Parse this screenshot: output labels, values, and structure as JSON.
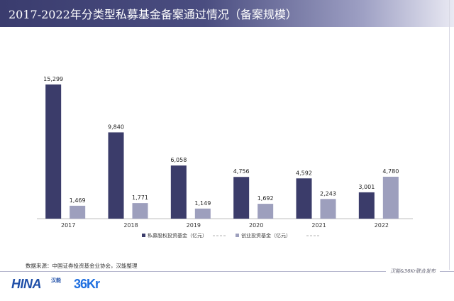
{
  "header": {
    "title": "2017-2022年分类型私募基金备案通过情况（备案规模）"
  },
  "chart_data": {
    "type": "bar",
    "categories": [
      "2017",
      "2018",
      "2019",
      "2020",
      "2021",
      "2022"
    ],
    "series": [
      {
        "name": "私募股权投资基金（亿元）",
        "color": "#3b3c6a",
        "values": [
          15299,
          9840,
          6058,
          4756,
          4592,
          3001
        ],
        "labels": [
          "15,299",
          "9,840",
          "6,058",
          "4,756",
          "4,592",
          "3,001"
        ]
      },
      {
        "name": "创业投资基金（亿元）",
        "color": "#9d9fbd",
        "values": [
          1469,
          1771,
          1149,
          1692,
          2243,
          4780
        ],
        "labels": [
          "1,469",
          "1,771",
          "1,149",
          "1,692",
          "2,243",
          "4,780"
        ]
      }
    ],
    "ylim": [
      0,
      17000
    ],
    "grid": false,
    "legend_position": "bottom"
  },
  "source": {
    "text": "数据来源：中国证券投资基金业协会，汉能整理"
  },
  "footer": {
    "release_note": "汉能&36Kr联合发布",
    "logo_hina_text": "HINA",
    "logo_hina_cn": "汉能",
    "logo_36kr_text": "36Kr"
  }
}
